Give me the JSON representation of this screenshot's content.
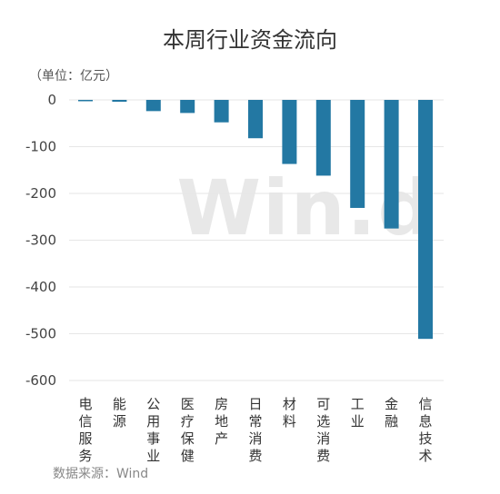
{
  "chart_data": {
    "type": "bar",
    "title": "本周行业资金流向",
    "unit_label": "（单位：亿元）",
    "categories": [
      "电信服务",
      "能源",
      "公用事业",
      "医疗保健",
      "房地产",
      "日常消费",
      "材料",
      "可选消费",
      "工业",
      "金融",
      "信息技术"
    ],
    "values": [
      -2,
      -4,
      -24,
      -28,
      -48,
      -82,
      -137,
      -162,
      -231,
      -275,
      -511
    ],
    "ylim": [
      -600,
      0
    ],
    "yticks": [
      0,
      -100,
      -200,
      -300,
      -400,
      -500,
      -600
    ],
    "ytick_labels": [
      "0",
      "-100",
      "-200",
      "-300",
      "-400",
      "-500",
      "-600"
    ],
    "grid": true,
    "bar_color": "#2378a3",
    "gridline_color": "#e6e6e6"
  },
  "watermark": "Win.d",
  "source": "数据来源：Wind"
}
